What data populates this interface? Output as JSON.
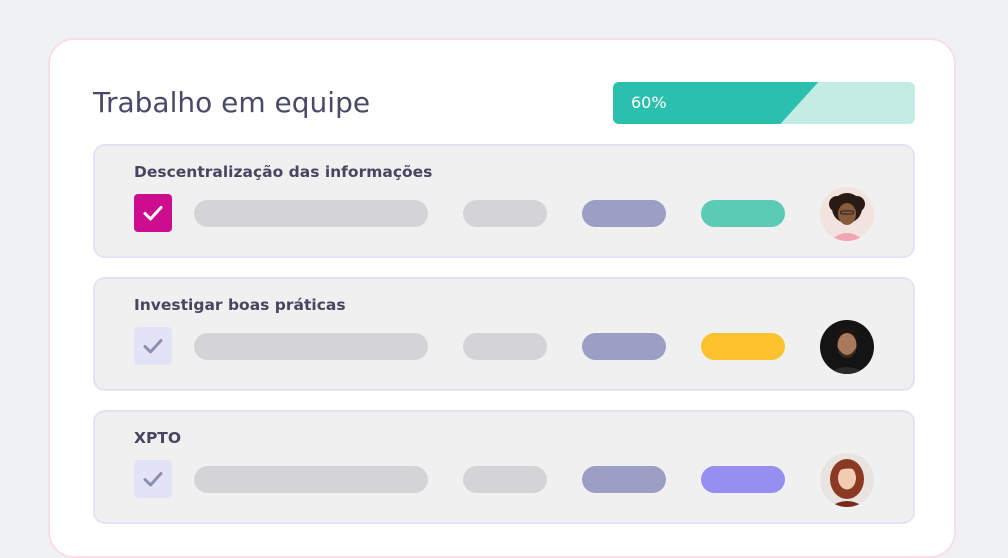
{
  "header": {
    "title": "Trabalho em equipe"
  },
  "progress": {
    "value_percent": 60,
    "label": "60%",
    "fill_color": "#2bbfad",
    "track_color": "#c2ece4"
  },
  "tasks": [
    {
      "title": "Descentralização das informações",
      "checked": true,
      "status_color": "#5ccbb5",
      "avatar": "person-avatar-woman-curly-hair"
    },
    {
      "title": "Investigar boas práticas",
      "checked": false,
      "status_color": "#fdc22e",
      "avatar": "person-avatar-man-dark-background"
    },
    {
      "title": "XPTO",
      "checked": false,
      "status_color": "#968ef0",
      "avatar": "person-avatar-woman-red-hair"
    }
  ],
  "colors": {
    "checkbox_checked": "#cc0d8f",
    "checkbox_unchecked": "#e3e3f8",
    "accent_teal": "#2bbfad"
  }
}
